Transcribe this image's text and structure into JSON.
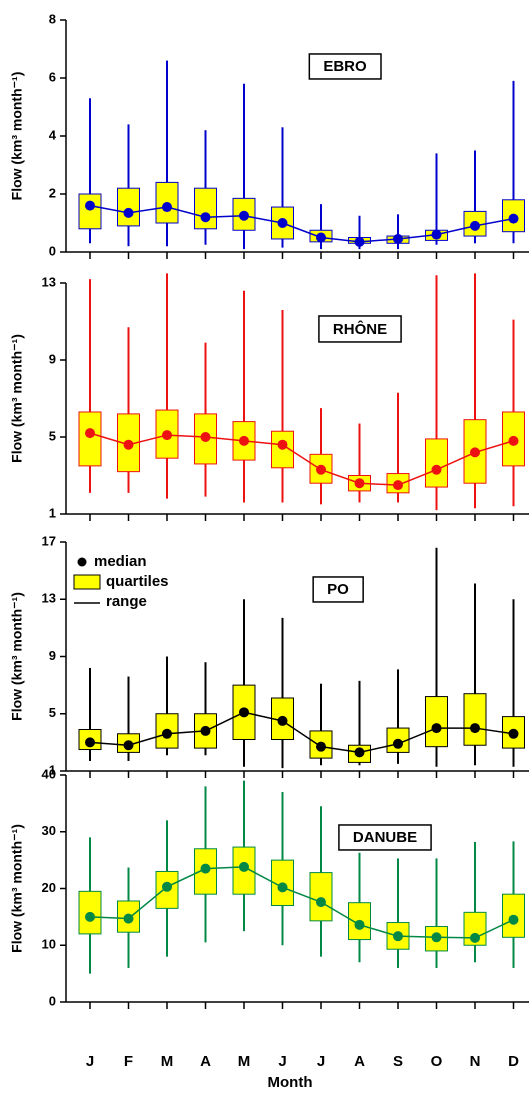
{
  "chart_data": [
    {
      "type": "box",
      "title": "EBRO",
      "ylabel": "Flow (km³ month⁻¹)",
      "color": "#0000cc",
      "box_color": "#ffff00",
      "ylim": [
        0,
        8
      ],
      "yticks": [
        0,
        2,
        4,
        6,
        8
      ],
      "min": [
        0.3,
        0.2,
        0.2,
        0.25,
        0.1,
        0.15,
        0.1,
        0.1,
        0.1,
        0.25,
        0.3,
        0.3
      ],
      "q1": [
        0.8,
        0.9,
        1.0,
        0.8,
        0.75,
        0.45,
        0.35,
        0.3,
        0.3,
        0.4,
        0.55,
        0.7
      ],
      "median": [
        1.6,
        1.35,
        1.55,
        1.2,
        1.25,
        1.0,
        0.5,
        0.35,
        0.45,
        0.6,
        0.9,
        1.15
      ],
      "q3": [
        2.0,
        2.2,
        2.4,
        2.2,
        1.85,
        1.55,
        0.75,
        0.5,
        0.55,
        0.75,
        1.4,
        1.8
      ],
      "max": [
        5.3,
        4.4,
        6.6,
        4.2,
        5.8,
        4.3,
        1.65,
        1.25,
        1.3,
        3.4,
        3.5,
        5.9
      ]
    },
    {
      "type": "box",
      "title": "RHÔNE",
      "ylabel": "Flow (km³ month⁻¹)",
      "color": "#ee1111",
      "box_color": "#ffff00",
      "ylim": [
        1,
        13
      ],
      "yticks": [
        1,
        5,
        9,
        13
      ],
      "min": [
        2.1,
        2.1,
        1.8,
        1.9,
        1.6,
        1.6,
        1.5,
        1.6,
        1.6,
        1.2,
        1.3,
        1.4
      ],
      "q1": [
        3.5,
        3.2,
        3.9,
        3.6,
        3.8,
        3.4,
        2.6,
        2.2,
        2.1,
        2.4,
        2.6,
        3.5
      ],
      "median": [
        5.2,
        4.6,
        5.1,
        5.0,
        4.8,
        4.6,
        3.3,
        2.6,
        2.5,
        3.3,
        4.2,
        4.8
      ],
      "q3": [
        6.3,
        6.2,
        6.4,
        6.2,
        5.8,
        5.3,
        4.1,
        3.0,
        3.1,
        4.9,
        5.9,
        6.3
      ],
      "max": [
        13.2,
        10.7,
        13.5,
        9.9,
        12.6,
        11.6,
        6.5,
        5.7,
        7.3,
        13.4,
        13.5,
        11.1
      ]
    },
    {
      "type": "box",
      "title": "PO",
      "ylabel": "Flow (km³ month⁻¹)",
      "color": "#000000",
      "box_color": "#ffff00",
      "ylim": [
        1,
        17
      ],
      "yticks": [
        1,
        5,
        9,
        13,
        17
      ],
      "legend": [
        "median",
        "quartiles",
        "range"
      ],
      "legend_position": "upper left",
      "min": [
        1.7,
        1.7,
        2.1,
        2.1,
        1.3,
        1.2,
        1.4,
        1.4,
        1.5,
        1.3,
        1.4,
        1.3
      ],
      "q1": [
        2.5,
        2.3,
        2.6,
        2.6,
        3.2,
        3.2,
        1.9,
        1.6,
        2.3,
        2.7,
        2.8,
        2.6
      ],
      "median": [
        3.0,
        2.8,
        3.6,
        3.8,
        5.1,
        4.5,
        2.7,
        2.3,
        2.9,
        4.0,
        4.0,
        3.6
      ],
      "q3": [
        3.9,
        3.6,
        5.0,
        5.0,
        7.0,
        6.1,
        3.8,
        2.8,
        4.0,
        6.2,
        6.4,
        4.8
      ],
      "max": [
        8.2,
        7.6,
        9.0,
        8.6,
        13.0,
        11.7,
        7.1,
        7.3,
        8.1,
        16.6,
        14.1,
        13.0
      ]
    },
    {
      "type": "box",
      "title": "DANUBE",
      "ylabel": "Flow (km³ month⁻¹)",
      "xlabel": "Month",
      "color": "#008844",
      "box_color": "#ffff00",
      "ylim": [
        0,
        40
      ],
      "yticks": [
        0,
        10,
        20,
        30,
        40
      ],
      "categories": [
        "J",
        "F",
        "M",
        "A",
        "M",
        "J",
        "J",
        "A",
        "S",
        "O",
        "N",
        "D"
      ],
      "min": [
        5,
        6,
        8,
        10.5,
        12.5,
        10,
        8,
        7,
        6,
        6,
        7,
        6
      ],
      "q1": [
        12,
        12.3,
        16.5,
        19,
        19,
        17,
        14.3,
        11,
        9.3,
        9,
        10,
        11.4
      ],
      "median": [
        15,
        14.7,
        20.3,
        23.5,
        23.8,
        20.2,
        17.6,
        13.6,
        11.6,
        11.4,
        11.3,
        14.5
      ],
      "q3": [
        19.5,
        17.8,
        23,
        27,
        27.3,
        25,
        22.8,
        17.5,
        14,
        13.3,
        15.8,
        19
      ],
      "max": [
        29,
        23.7,
        32,
        38,
        39,
        37,
        34.5,
        26.3,
        25.3,
        25.3,
        28.2,
        28.3
      ]
    }
  ]
}
